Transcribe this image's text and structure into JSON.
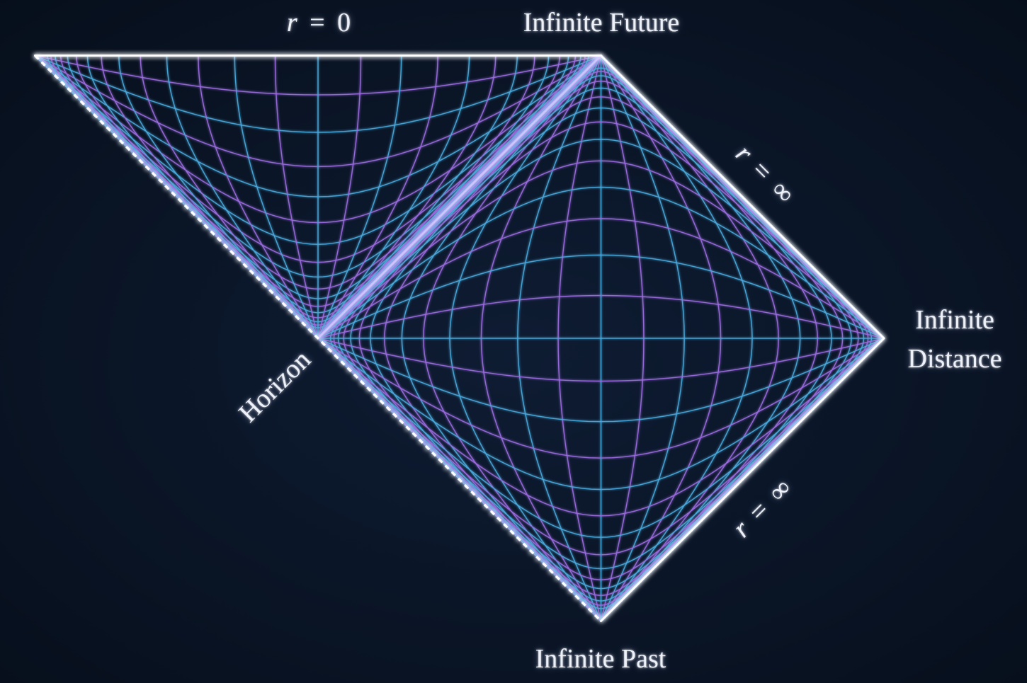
{
  "diagram": {
    "labels": {
      "singularity": "r = 0",
      "future_infinity": "Infinite Future",
      "past_infinity": "Infinite Past",
      "future_null_infinity": "r = ∞",
      "past_null_infinity": "r = ∞",
      "spatial_infinity": [
        "Infinite",
        "Distance"
      ],
      "horizon": "Horizon"
    },
    "colors": {
      "background_center": "#0e1c33",
      "background_edge": "#060e1a",
      "boundary": "#ffffff",
      "horizon_glow": "#d8c8ff",
      "grid_cyan": "#4aa9dc",
      "grid_purple": "#9b6be0",
      "label_text": "#eef1f8"
    }
  }
}
